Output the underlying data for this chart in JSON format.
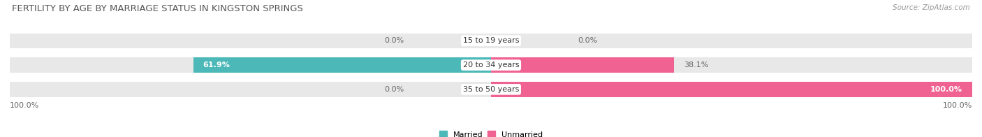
{
  "title": "FERTILITY BY AGE BY MARRIAGE STATUS IN KINGSTON SPRINGS",
  "source": "Source: ZipAtlas.com",
  "categories": [
    "15 to 19 years",
    "20 to 34 years",
    "35 to 50 years"
  ],
  "married": [
    0.0,
    61.9,
    0.0
  ],
  "unmarried": [
    0.0,
    38.1,
    100.0
  ],
  "married_color": "#4db8b8",
  "unmarried_color": "#f06292",
  "bar_bg_color": "#e8e8e8",
  "bar_height": 0.62,
  "title_fontsize": 9.5,
  "label_fontsize": 8.0,
  "value_fontsize": 8.0,
  "axis_label_left": "100.0%",
  "axis_label_right": "100.0%",
  "xlim_left": -100,
  "xlim_right": 100
}
